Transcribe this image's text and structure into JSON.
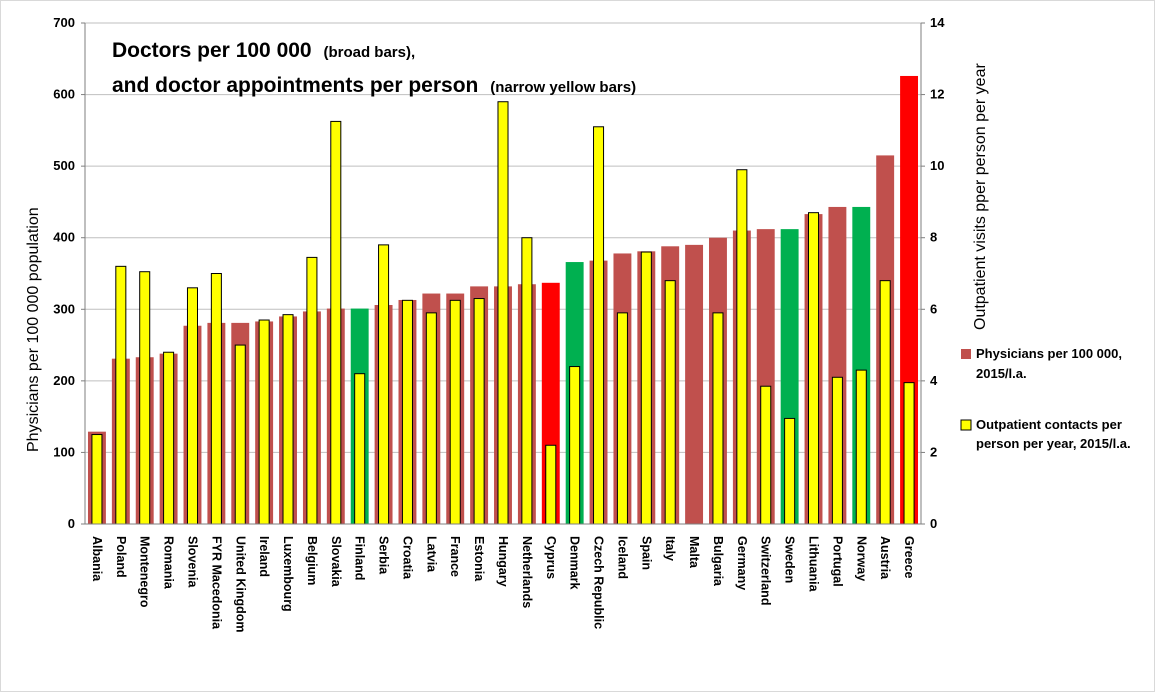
{
  "chart_data": {
    "type": "bar",
    "title": {
      "line1_main": "Doctors per 100 000",
      "line1_note": "(broad bars),",
      "line2_main": "and doctor appointments per person",
      "line2_note": "(narrow yellow bars)"
    },
    "ylabel": "Physicians per 100 000 population",
    "y2label": "Outpatient visits pper person per year",
    "ylim": [
      0,
      700
    ],
    "y2lim": [
      0,
      14
    ],
    "yticks": [
      "0",
      "100",
      "200",
      "300",
      "400",
      "500",
      "600",
      "700"
    ],
    "y2ticks": [
      "0",
      "2",
      "4",
      "6",
      "8",
      "10",
      "12",
      "14"
    ],
    "grid": "horizontal",
    "legend_position": "right",
    "categories": [
      "Albania",
      "Poland",
      "Montenegro",
      "Romania",
      "Slovenia",
      "FYR Macedonia",
      "United Kingdom",
      "Ireland",
      "Luxembourg",
      "Belgium",
      "Slovakia",
      "Finland",
      "Serbia",
      "Croatia",
      "Latvia",
      "France",
      "Estonia",
      "Hungary",
      "Netherlands",
      "Cyprus",
      "Denmark",
      "Czech Republic",
      "Iceland",
      "Spain",
      "Italy",
      "Malta",
      "Bulgaria",
      "Germany",
      "Switzerland",
      "Sweden",
      "Lithuania",
      "Portugal",
      "Norway",
      "Austria",
      "Greece"
    ],
    "series": [
      {
        "name": "Physicians per 100 000, 2015/l.a.",
        "axis": "left",
        "color": "#c0504d",
        "values": [
          129,
          231,
          233,
          238,
          277,
          281,
          281,
          283,
          290,
          297,
          301,
          301,
          306,
          313,
          322,
          322,
          332,
          332,
          335,
          337,
          366,
          368,
          378,
          381,
          388,
          390,
          400,
          410,
          412,
          412,
          433,
          443,
          443,
          515,
          626
        ],
        "colors": [
          "#c0504d",
          "#c0504d",
          "#c0504d",
          "#c0504d",
          "#c0504d",
          "#c0504d",
          "#c0504d",
          "#c0504d",
          "#c0504d",
          "#c0504d",
          "#c0504d",
          "#00b050",
          "#c0504d",
          "#c0504d",
          "#c0504d",
          "#c0504d",
          "#c0504d",
          "#c0504d",
          "#c0504d",
          "#ff0000",
          "#00b050",
          "#c0504d",
          "#c0504d",
          "#c0504d",
          "#c0504d",
          "#c0504d",
          "#c0504d",
          "#c0504d",
          "#c0504d",
          "#00b050",
          "#c0504d",
          "#c0504d",
          "#00b050",
          "#c0504d",
          "#ff0000"
        ]
      },
      {
        "name": "Outpatient contacts per person per year, 2015/l.a.",
        "axis": "right",
        "color": "#ffff00",
        "values": [
          2.5,
          7.2,
          7.05,
          4.8,
          6.6,
          7.0,
          5.0,
          5.7,
          5.85,
          7.45,
          11.25,
          4.2,
          7.8,
          6.25,
          5.9,
          6.25,
          6.3,
          11.8,
          8.0,
          2.2,
          4.4,
          11.1,
          5.9,
          7.6,
          6.8,
          null,
          5.9,
          9.9,
          3.85,
          2.95,
          8.7,
          4.1,
          4.3,
          6.8,
          3.95
        ]
      }
    ]
  }
}
